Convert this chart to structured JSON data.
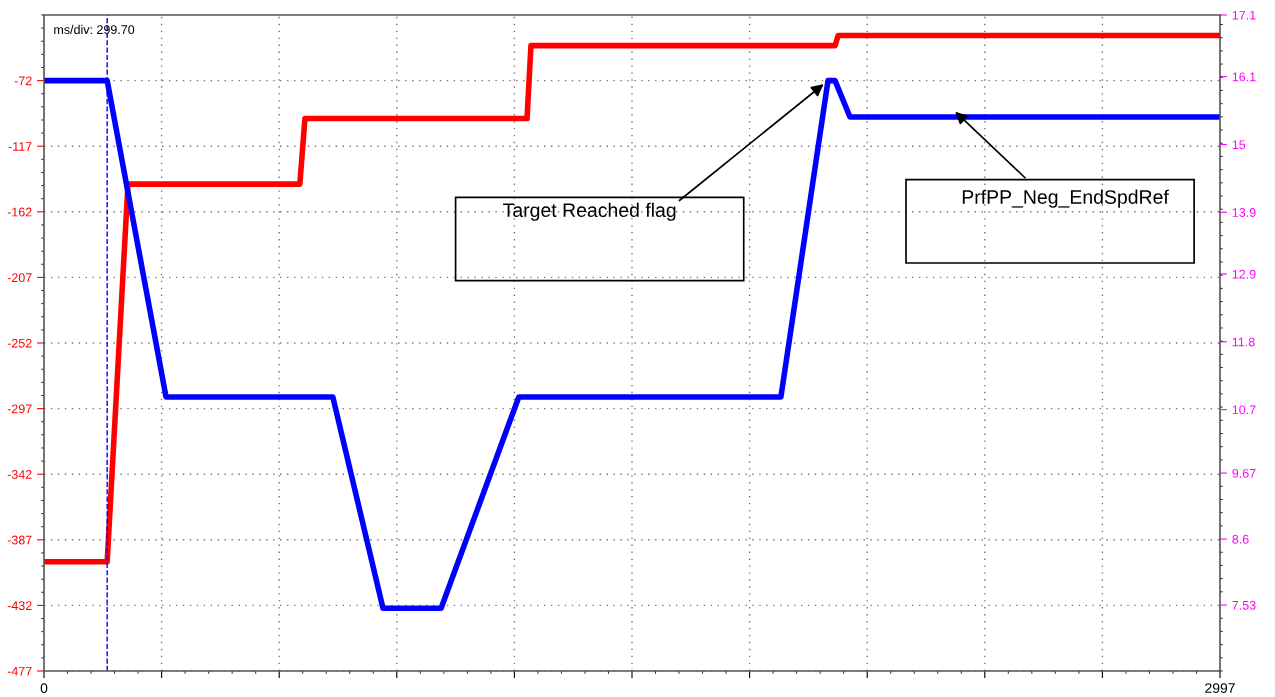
{
  "chart_data": {
    "type": "line",
    "xlim": [
      0,
      2997
    ],
    "xticks": [
      0,
      {
        "value": 299.7,
        "label": null
      },
      {
        "value": 599.4,
        "label": null
      },
      {
        "value": 899.1,
        "label": null
      },
      {
        "value": 1198.8,
        "label": null
      },
      {
        "value": 1498.5,
        "label": null
      },
      {
        "value": 1798.2,
        "label": null
      },
      {
        "value": 2097.9,
        "label": null
      },
      {
        "value": 2397.6,
        "label": null
      },
      {
        "value": 2697.3,
        "label": null
      },
      2997
    ],
    "ylim": [
      -477,
      -27
    ],
    "yticks": [
      -72,
      -117,
      -162,
      -207,
      -252,
      -297,
      -342,
      -387,
      -432,
      -477
    ],
    "y2lim": [
      6.46,
      17.1
    ],
    "y2ticks": [
      17.1,
      16.1,
      15,
      13.9,
      12.9,
      11.8,
      10.7,
      9.67,
      8.6,
      7.53
    ],
    "grid": true,
    "line_style": "solid",
    "series": [
      {
        "color": "#ff0000",
        "x": [
          0,
          161,
          214,
          652,
          665,
          1231,
          1241,
          2016,
          2024,
          2997
        ],
        "values": [
          -402,
          -402,
          -143,
          -143,
          -98,
          -98,
          -48,
          -48,
          -41,
          -41
        ]
      },
      {
        "color": "#0000ff",
        "x": [
          0,
          161,
          311,
          736,
          864,
          1012,
          1210,
          1878,
          1998,
          2016,
          2054,
          2997
        ],
        "values": [
          -72,
          -72,
          -289,
          -289,
          -434,
          -434,
          -289,
          -289,
          -72,
          -72,
          -97,
          -97
        ]
      }
    ],
    "ref_lines": [
      {
        "axis": "x",
        "value": 161,
        "color": "#0000ff",
        "line_style": "dashed"
      }
    ],
    "annotations": [
      "ms/div: 299.70",
      {
        "text": "Target Reached flag",
        "x": 1998,
        "y": -72
      },
      {
        "text": "PrfPP_Neg_EndSpdRef",
        "x": 2317,
        "y": -92
      }
    ]
  }
}
